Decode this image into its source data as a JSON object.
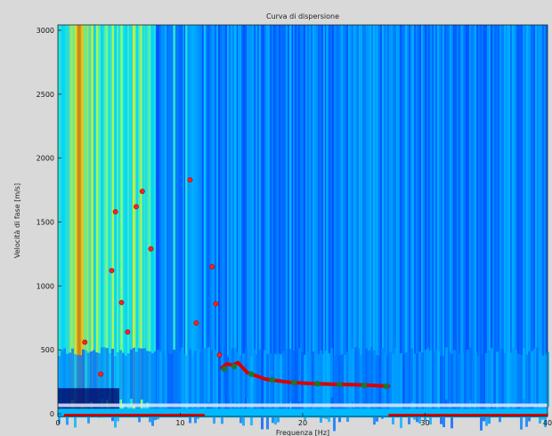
{
  "chart_data": {
    "type": "heatmap",
    "title": "Curva di dispersione",
    "xlabel": "Frequenza [Hz]",
    "ylabel": "Velocità di fase [m/s]",
    "xlim": [
      0,
      40
    ],
    "ylim": [
      0,
      3000
    ],
    "xticks": [
      "0",
      "10",
      "20",
      "30",
      "40"
    ],
    "yticks": [
      "0",
      "500",
      "1000",
      "1500",
      "2000",
      "2500",
      "3000"
    ],
    "colormap": [
      "#00008f",
      "#0050ff",
      "#00d4ff",
      "#7fff7f",
      "#ffe000",
      "#ff5000",
      "#a00000"
    ],
    "spectrum_columns_hz": [
      {
        "f": 1.5,
        "level": 0.65
      },
      {
        "f": 1.6,
        "level": 0.8
      },
      {
        "f": 1.7,
        "level": 0.92
      },
      {
        "f": 1.8,
        "level": 0.98
      },
      {
        "f": 1.9,
        "level": 0.9
      },
      {
        "f": 2.0,
        "level": 0.75
      },
      {
        "f": 2.8,
        "level": 0.62
      },
      {
        "f": 3.2,
        "level": 0.55
      },
      {
        "f": 4.0,
        "level": 0.48
      },
      {
        "f": 4.5,
        "level": 0.55
      },
      {
        "f": 5.2,
        "level": 0.5
      },
      {
        "f": 6.2,
        "level": 0.62
      },
      {
        "f": 6.8,
        "level": 0.55
      },
      {
        "f": 7.5,
        "level": 0.45
      },
      {
        "f": 9.5,
        "level": 0.4
      },
      {
        "f": 10.5,
        "level": 0.38
      },
      {
        "f": 12.0,
        "level": 0.32
      },
      {
        "f": 14.5,
        "level": 0.3
      },
      {
        "f": 16.5,
        "level": 0.28
      },
      {
        "f": 19.0,
        "level": 0.3
      },
      {
        "f": 22.0,
        "level": 0.28
      },
      {
        "f": 26.0,
        "level": 0.27
      },
      {
        "f": 29.0,
        "level": 0.28
      },
      {
        "f": 33.0,
        "level": 0.27
      },
      {
        "f": 36.5,
        "level": 0.28
      },
      {
        "f": 38.5,
        "level": 0.27
      }
    ],
    "picked_points": [
      {
        "f": 2.2,
        "v": 560
      },
      {
        "f": 3.5,
        "v": 310
      },
      {
        "f": 4.4,
        "v": 1120
      },
      {
        "f": 4.7,
        "v": 1580
      },
      {
        "f": 5.2,
        "v": 870
      },
      {
        "f": 5.7,
        "v": 640
      },
      {
        "f": 6.4,
        "v": 1620
      },
      {
        "f": 6.9,
        "v": 1740
      },
      {
        "f": 7.6,
        "v": 1290
      },
      {
        "f": 10.8,
        "v": 1830
      },
      {
        "f": 11.3,
        "v": 710
      },
      {
        "f": 12.6,
        "v": 1150
      },
      {
        "f": 12.9,
        "v": 860
      },
      {
        "f": 13.2,
        "v": 460
      }
    ],
    "dispersion_curve": {
      "x": [
        13.4,
        13.8,
        14.3,
        14.7,
        15.5,
        17.0,
        19.0,
        21.0,
        23.0,
        25.0,
        27.0
      ],
      "y": [
        360,
        390,
        380,
        400,
        320,
        270,
        245,
        235,
        230,
        225,
        215
      ]
    },
    "curve_markers": {
      "x": [
        13.6,
        14.4,
        15.8,
        17.5,
        19.3,
        21.2,
        23.0,
        25.0,
        26.8
      ],
      "y": [
        350,
        370,
        310,
        265,
        245,
        235,
        228,
        222,
        215
      ]
    },
    "axis_band_segments": [
      [
        0.5,
        12.0
      ],
      [
        27.0,
        40.0
      ]
    ],
    "curve_color": "#d80000",
    "point_color": "#ff2020",
    "marker_color": "#1a7a2a"
  }
}
